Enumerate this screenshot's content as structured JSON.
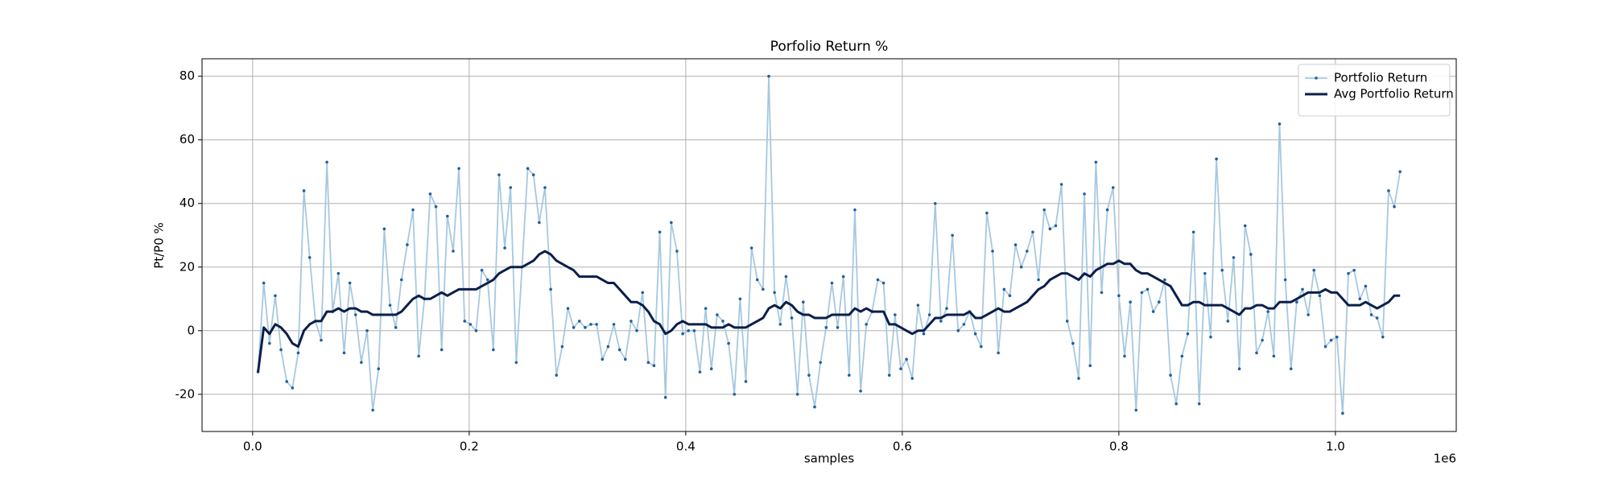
{
  "chart_data": {
    "type": "line",
    "title": "Porfolio Return %",
    "x_label": "samples",
    "y_label": "Pt/P0 %",
    "x_offset_label": "1e6",
    "x": [
      5000,
      10300,
      15600,
      20900,
      26200,
      31500,
      36800,
      42100,
      47400,
      52700,
      58000,
      63300,
      68600,
      73900,
      79200,
      84500,
      89800,
      95100,
      100400,
      105700,
      111000,
      116300,
      121600,
      126900,
      132200,
      137500,
      142800,
      148100,
      153400,
      158700,
      164000,
      169300,
      174600,
      179900,
      185200,
      190500,
      195800,
      201100,
      206400,
      211700,
      217000,
      222300,
      227600,
      232900,
      238200,
      243500,
      248800,
      254100,
      259400,
      264700,
      270000,
      275300,
      280600,
      285900,
      291200,
      296500,
      301800,
      307100,
      312400,
      317700,
      323000,
      328300,
      333600,
      338900,
      344200,
      349500,
      354800,
      360100,
      365400,
      370700,
      376000,
      381300,
      386600,
      391900,
      397200,
      402500,
      407800,
      413100,
      418400,
      423700,
      429000,
      434300,
      439600,
      444900,
      450200,
      455500,
      460800,
      466100,
      471400,
      476700,
      482000,
      487300,
      492600,
      497900,
      503200,
      508500,
      513800,
      519100,
      524400,
      529700,
      535000,
      540300,
      545600,
      550900,
      556200,
      561500,
      566800,
      572100,
      577400,
      582700,
      588000,
      593300,
      598600,
      603900,
      609200,
      614500,
      619800,
      625100,
      630400,
      635700,
      641000,
      646300,
      651600,
      656900,
      662200,
      667500,
      672800,
      678100,
      683400,
      688700,
      694000,
      699300,
      704600,
      709900,
      715200,
      720500,
      725800,
      731100,
      736400,
      741700,
      747000,
      752300,
      757600,
      762900,
      768200,
      773500,
      778800,
      784100,
      789400,
      794700,
      800000,
      805300,
      810600,
      815900,
      821200,
      826500,
      831800,
      837100,
      842400,
      847700,
      853000,
      858300,
      863600,
      868900,
      874200,
      879500,
      884800,
      890100,
      895400,
      900700,
      906000,
      911300,
      916600,
      921900,
      927200,
      932500,
      937800,
      943100,
      948400,
      953700,
      959000,
      964300,
      969600,
      974900,
      980200,
      985500,
      990800,
      996100,
      1001400,
      1006700,
      1012000,
      1017300,
      1022600,
      1027900,
      1033200,
      1038500,
      1043800,
      1049100,
      1054400,
      1059700
    ],
    "series": [
      {
        "name": "Portfolio Return",
        "color": "#a6c8e0",
        "marker_color": "#1f5f9e",
        "values": [
          -13,
          15,
          -4,
          11,
          -6,
          -16,
          -18,
          -7,
          44,
          23,
          3,
          -3,
          53,
          6,
          18,
          -7,
          15,
          5,
          -10,
          0,
          -25,
          -12,
          32,
          8,
          1,
          16,
          27,
          38,
          -8,
          10,
          43,
          39,
          -6,
          36,
          25,
          51,
          3,
          2,
          0,
          19,
          16,
          -6,
          49,
          26,
          45,
          -10,
          20,
          51,
          49,
          34,
          45,
          13,
          -14,
          -5,
          7,
          1,
          3,
          1,
          2,
          2,
          -9,
          -5,
          2,
          -6,
          -9,
          3,
          0,
          12,
          -10,
          -11,
          31,
          -21,
          34,
          25,
          -1,
          0,
          0,
          -13,
          7,
          -12,
          5,
          3,
          -4,
          -20,
          10,
          -16,
          26,
          16,
          13,
          80,
          12,
          2,
          17,
          4,
          -20,
          9,
          -14,
          -24,
          -10,
          1,
          15,
          1,
          17,
          -14,
          38,
          -19,
          2,
          6,
          16,
          15,
          -14,
          5,
          -12,
          -9,
          -15,
          8,
          -1,
          5,
          40,
          3,
          7,
          30,
          0,
          2,
          6,
          -1,
          -5,
          37,
          25,
          -7,
          13,
          11,
          27,
          20,
          25,
          31,
          16,
          38,
          32,
          33,
          46,
          3,
          -4,
          -15,
          43,
          -11,
          53,
          12,
          38,
          45,
          11,
          -8,
          9,
          -25,
          12,
          13,
          6,
          9,
          16,
          -14,
          -23,
          -8,
          -1,
          31,
          -23,
          18,
          -2,
          54,
          19,
          3,
          23,
          -12,
          33,
          24,
          -7,
          -3,
          6,
          -8,
          65,
          16,
          -12,
          9,
          13,
          5,
          19,
          11,
          -5,
          -3,
          -2,
          -26,
          18,
          19,
          10,
          14,
          5,
          4,
          -2,
          44,
          39,
          50
        ]
      },
      {
        "name": "Avg Portfolio Return",
        "color": "#0b1f4b",
        "values": [
          -13,
          1,
          -1,
          2,
          1,
          -1,
          -4,
          -5,
          0,
          2,
          3,
          3,
          6,
          6,
          7,
          6,
          7,
          7,
          6,
          6,
          5,
          5,
          5,
          5,
          5,
          6,
          8,
          10,
          11,
          10,
          10,
          11,
          12,
          11,
          12,
          13,
          13,
          13,
          13,
          14,
          15,
          16,
          18,
          19,
          20,
          20,
          20,
          21,
          22,
          24,
          25,
          24,
          22,
          21,
          20,
          19,
          17,
          17,
          17,
          17,
          16,
          15,
          15,
          13,
          11,
          9,
          9,
          8,
          6,
          3,
          2,
          -1,
          0,
          2,
          3,
          2,
          2,
          2,
          2,
          1,
          1,
          1,
          2,
          1,
          1,
          1,
          2,
          3,
          4,
          7,
          8,
          7,
          9,
          8,
          6,
          5,
          5,
          4,
          4,
          4,
          5,
          5,
          5,
          5,
          7,
          6,
          7,
          6,
          6,
          6,
          2,
          2,
          1,
          0,
          -1,
          0,
          0,
          2,
          4,
          4,
          5,
          5,
          5,
          5,
          6,
          4,
          4,
          5,
          6,
          7,
          6,
          6,
          7,
          8,
          9,
          11,
          13,
          14,
          16,
          17,
          18,
          18,
          17,
          16,
          18,
          17,
          19,
          20,
          21,
          21,
          22,
          21,
          21,
          19,
          18,
          18,
          17,
          16,
          15,
          14,
          11,
          8,
          8,
          9,
          9,
          8,
          8,
          8,
          8,
          7,
          6,
          5,
          7,
          7,
          8,
          8,
          7,
          7,
          9,
          9,
          9,
          10,
          11,
          12,
          12,
          12,
          13,
          12,
          12,
          10,
          8,
          8,
          8,
          9,
          8,
          7,
          8,
          9,
          11,
          11
        ]
      }
    ],
    "xlim": [
      -46700,
      1111600
    ],
    "ylim": [
      -31.7,
      85.5
    ],
    "xticks": [
      {
        "value": 0,
        "label": "0.0"
      },
      {
        "value": 200000,
        "label": "0.2"
      },
      {
        "value": 400000,
        "label": "0.4"
      },
      {
        "value": 600000,
        "label": "0.6"
      },
      {
        "value": 800000,
        "label": "0.8"
      },
      {
        "value": 1000000,
        "label": "1.0"
      }
    ],
    "yticks": [
      -20,
      0,
      20,
      40,
      60,
      80
    ],
    "grid": true,
    "legend": "upper-right"
  }
}
